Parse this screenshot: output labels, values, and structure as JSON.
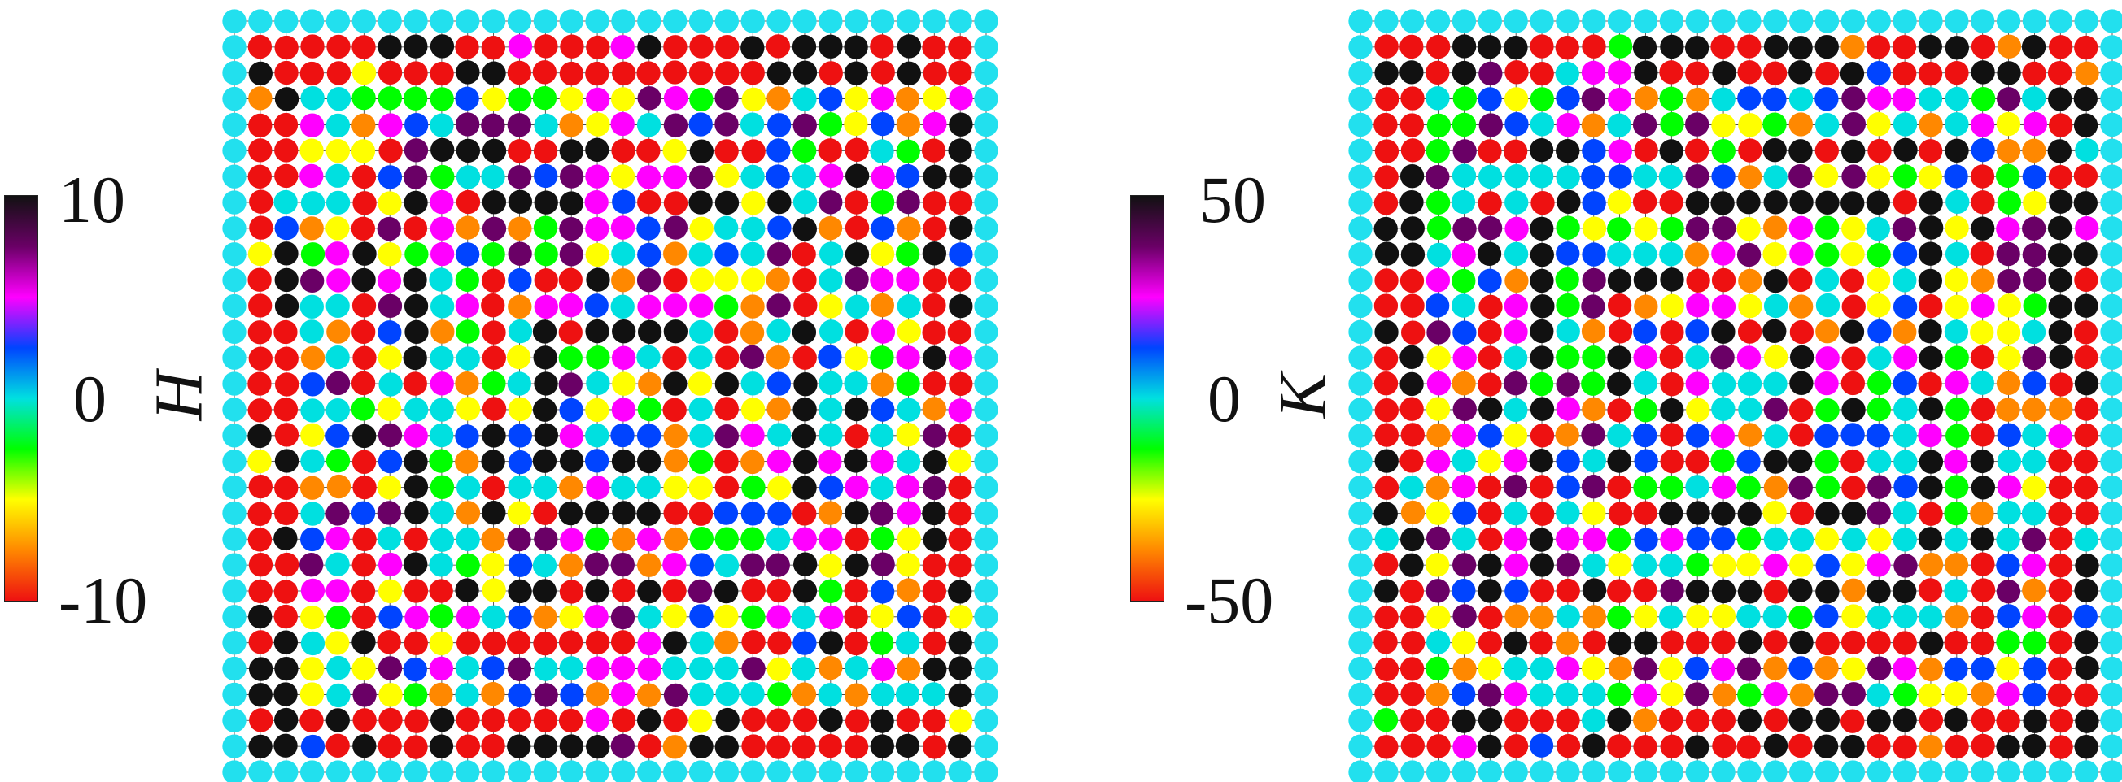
{
  "chart_data": [
    {
      "type": "heatmap",
      "series_label": "H",
      "colorbar": {
        "min": -10,
        "max": 10,
        "ticks": [
          "10",
          "0",
          "-10"
        ],
        "colors": [
          "#ee1111",
          "#ff8800",
          "#ffff00",
          "#00ff00",
          "#00e0e0",
          "#0044ff",
          "#ff00ff",
          "#6a0066",
          "#111111"
        ]
      },
      "grid": {
        "cols": 30,
        "rows": 30
      },
      "boundary_color": "#22e0ee"
    },
    {
      "type": "heatmap",
      "series_label": "K",
      "colorbar": {
        "min": -50,
        "max": 50,
        "ticks": [
          "50",
          "0",
          "-50"
        ],
        "colors": [
          "#ee1111",
          "#ff8800",
          "#ffff00",
          "#00ff00",
          "#00e0e0",
          "#0044ff",
          "#ff00ff",
          "#6a0066",
          "#111111"
        ]
      },
      "grid": {
        "cols": 30,
        "rows": 30
      },
      "boundary_color": "#22e0ee"
    }
  ]
}
